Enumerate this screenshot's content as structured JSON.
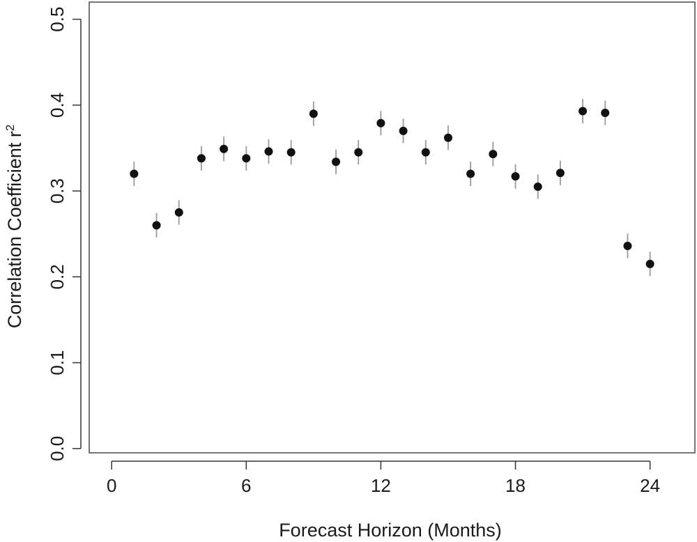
{
  "chart_data": {
    "type": "scatter",
    "title": "",
    "xlabel": "Forecast Horizon (Months)",
    "ylabel": "Correlation Coefficient r",
    "ylabel_superscript": "2",
    "xlim": [
      -1,
      26
    ],
    "ylim": [
      -0.005,
      0.52
    ],
    "x_ticks": [
      0,
      6,
      12,
      18,
      24
    ],
    "x_tick_labels": [
      "0",
      "6",
      "12",
      "18",
      "24"
    ],
    "y_ticks": [
      0.0,
      0.1,
      0.2,
      0.3,
      0.4,
      0.5
    ],
    "y_tick_labels": [
      "0.0",
      "0.1",
      "0.2",
      "0.3",
      "0.4",
      "0.5"
    ],
    "grid": false,
    "marker_color": "#111111",
    "errorbar_color": "#9a9a9a",
    "points": [
      {
        "x": 1,
        "y": 0.32,
        "err": 0.011
      },
      {
        "x": 2,
        "y": 0.26,
        "err": 0.011
      },
      {
        "x": 3,
        "y": 0.275,
        "err": 0.011
      },
      {
        "x": 4,
        "y": 0.338,
        "err": 0.011
      },
      {
        "x": 5,
        "y": 0.349,
        "err": 0.011
      },
      {
        "x": 6,
        "y": 0.338,
        "err": 0.011
      },
      {
        "x": 7,
        "y": 0.346,
        "err": 0.011
      },
      {
        "x": 8,
        "y": 0.345,
        "err": 0.011
      },
      {
        "x": 9,
        "y": 0.39,
        "err": 0.011
      },
      {
        "x": 10,
        "y": 0.334,
        "err": 0.011
      },
      {
        "x": 11,
        "y": 0.345,
        "err": 0.011
      },
      {
        "x": 12,
        "y": 0.379,
        "err": 0.011
      },
      {
        "x": 13,
        "y": 0.37,
        "err": 0.011
      },
      {
        "x": 14,
        "y": 0.345,
        "err": 0.011
      },
      {
        "x": 15,
        "y": 0.362,
        "err": 0.011
      },
      {
        "x": 16,
        "y": 0.32,
        "err": 0.011
      },
      {
        "x": 17,
        "y": 0.343,
        "err": 0.011
      },
      {
        "x": 18,
        "y": 0.317,
        "err": 0.011
      },
      {
        "x": 19,
        "y": 0.305,
        "err": 0.011
      },
      {
        "x": 20,
        "y": 0.321,
        "err": 0.011
      },
      {
        "x": 21,
        "y": 0.393,
        "err": 0.011
      },
      {
        "x": 22,
        "y": 0.391,
        "err": 0.011
      },
      {
        "x": 23,
        "y": 0.236,
        "err": 0.011
      },
      {
        "x": 24,
        "y": 0.215,
        "err": 0.011
      }
    ]
  }
}
